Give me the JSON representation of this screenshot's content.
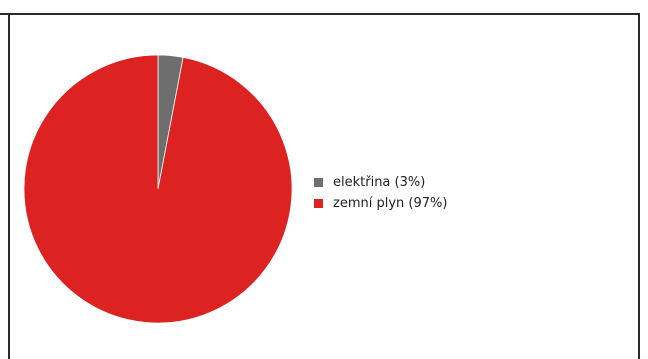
{
  "chart_data": {
    "type": "pie",
    "title": "",
    "slices": [
      {
        "label": "elektřina (3%)",
        "value": 3,
        "color": "#6e6e6e"
      },
      {
        "label": "zemní plyn (97%)",
        "value": 97,
        "color": "#dd2222"
      }
    ],
    "legend_position": "right"
  },
  "colors": {
    "border": "#2a2a2a",
    "background": "#ffffff"
  }
}
